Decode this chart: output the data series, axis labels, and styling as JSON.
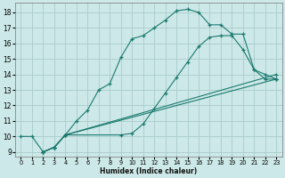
{
  "xlabel": "Humidex (Indice chaleur)",
  "bg_color": "#cce8e8",
  "grid_color": "#aacccc",
  "line_color": "#1a7a6e",
  "xlim": [
    -0.5,
    23.5
  ],
  "ylim": [
    8.7,
    18.6
  ],
  "yticks": [
    9,
    10,
    11,
    12,
    13,
    14,
    15,
    16,
    17,
    18
  ],
  "xticks": [
    0,
    1,
    2,
    3,
    4,
    5,
    6,
    7,
    8,
    9,
    10,
    11,
    12,
    13,
    14,
    15,
    16,
    17,
    18,
    19,
    20,
    21,
    22,
    23
  ],
  "curves": [
    {
      "x": [
        0,
        1,
        2,
        3,
        4,
        5,
        6,
        7,
        8,
        9,
        10,
        11,
        12,
        13,
        14,
        15,
        16,
        17,
        18,
        19,
        20,
        21,
        22,
        23
      ],
      "y": [
        10,
        10,
        9.0,
        9.3,
        10.1,
        11.0,
        11.7,
        13.0,
        13.4,
        15.1,
        16.3,
        16.5,
        17.0,
        17.5,
        18.1,
        18.2,
        18.0,
        17.2,
        17.2,
        16.6,
        16.6,
        14.3,
        14.0,
        13.7
      ]
    },
    {
      "x": [
        2,
        3,
        4,
        9,
        10,
        11,
        12,
        13,
        14,
        15,
        16,
        17,
        18,
        19,
        20,
        21,
        22,
        23
      ],
      "y": [
        9.0,
        9.3,
        10.1,
        10.1,
        10.2,
        10.8,
        11.8,
        12.8,
        13.8,
        14.8,
        15.8,
        16.4,
        16.5,
        16.5,
        15.6,
        14.3,
        13.7,
        13.7
      ]
    },
    {
      "x": [
        2,
        3,
        4,
        23
      ],
      "y": [
        9.0,
        9.3,
        10.1,
        14.0
      ]
    },
    {
      "x": [
        2,
        3,
        4,
        23
      ],
      "y": [
        9.0,
        9.3,
        10.1,
        13.7
      ]
    }
  ]
}
